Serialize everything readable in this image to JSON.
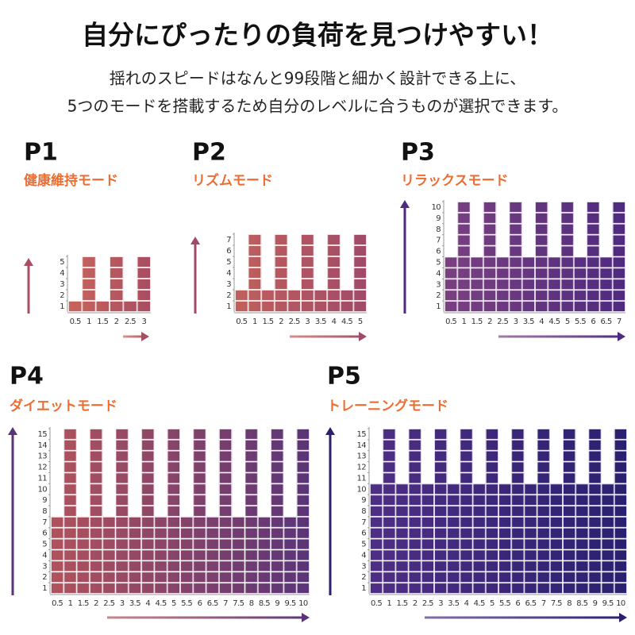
{
  "header": {
    "title": "自分にぴったりの負荷を見つけやすい！",
    "lines": [
      "揺れのスピードはなんと99段階と細かく設計できる上に、",
      "5つのモードを搭載するため自分のレベルに合うものが選択できます。"
    ]
  },
  "chart_data": [
    {
      "type": "bar",
      "title": "P1",
      "subtitle": "健康維持モード",
      "categories": [
        "0.5",
        "1",
        "1.5",
        "2",
        "2.5",
        "3"
      ],
      "values": [
        1,
        5,
        1,
        5,
        1,
        5
      ],
      "ylim": [
        0,
        5
      ],
      "yticks": [
        1,
        2,
        3,
        4,
        5
      ],
      "colors": [
        "#c8645c",
        "#a84e62"
      ]
    },
    {
      "type": "bar",
      "title": "P2",
      "subtitle": "リズムモード",
      "categories": [
        "0.5",
        "1",
        "1.5",
        "2",
        "2.5",
        "3",
        "3.5",
        "4",
        "4.5",
        "5"
      ],
      "values": [
        2,
        7,
        2,
        7,
        2,
        7,
        2,
        7,
        2,
        7
      ],
      "ylim": [
        0,
        7
      ],
      "yticks": [
        1,
        2,
        3,
        4,
        5,
        6,
        7
      ],
      "colors": [
        "#c0605c",
        "#a04a68"
      ]
    },
    {
      "type": "bar",
      "title": "P3",
      "subtitle": "リラックスモード",
      "categories": [
        "0.5",
        "1",
        "1.5",
        "2",
        "2.5",
        "3",
        "3.5",
        "4",
        "4.5",
        "5",
        "5.5",
        "6",
        "6.5",
        "7"
      ],
      "values": [
        5,
        10,
        5,
        10,
        5,
        10,
        5,
        10,
        5,
        10,
        5,
        10,
        5,
        10
      ],
      "ylim": [
        0,
        10
      ],
      "yticks": [
        1,
        2,
        3,
        4,
        5,
        6,
        7,
        8,
        9,
        10
      ],
      "colors": [
        "#7a4080",
        "#4e2a80"
      ]
    },
    {
      "type": "bar",
      "title": "P4",
      "subtitle": "ダイエットモード",
      "categories": [
        "0.5",
        "1",
        "1.5",
        "2",
        "2.5",
        "3",
        "3.5",
        "4",
        "4.5",
        "5",
        "5.5",
        "6",
        "6.5",
        "7",
        "7.5",
        "8",
        "8.5",
        "9",
        "9.5",
        "10"
      ],
      "values": [
        7,
        15,
        7,
        15,
        7,
        15,
        7,
        15,
        7,
        15,
        7,
        15,
        7,
        15,
        7,
        15,
        7,
        15,
        7,
        15
      ],
      "ylim": [
        0,
        15
      ],
      "yticks": [
        1,
        2,
        3,
        4,
        5,
        6,
        7,
        8,
        9,
        10,
        11,
        12,
        13,
        14,
        15
      ],
      "colors": [
        "#b0525c",
        "#5a3478"
      ]
    },
    {
      "type": "bar",
      "title": "P5",
      "subtitle": "トレーニングモード",
      "categories": [
        "0.5",
        "1",
        "1.5",
        "2",
        "2.5",
        "3",
        "3.5",
        "4",
        "4.5",
        "5",
        "5.5",
        "6",
        "6.5",
        "7",
        "7.5",
        "8",
        "8.5",
        "9",
        "9.5",
        "10"
      ],
      "values": [
        10,
        15,
        10,
        15,
        10,
        15,
        10,
        15,
        10,
        15,
        10,
        15,
        10,
        15,
        10,
        15,
        10,
        15,
        10,
        15
      ],
      "ylim": [
        0,
        15
      ],
      "yticks": [
        1,
        2,
        3,
        4,
        5,
        6,
        7,
        8,
        9,
        10,
        11,
        12,
        13,
        14,
        15
      ],
      "colors": [
        "#4e2e84",
        "#2a2070"
      ]
    }
  ]
}
